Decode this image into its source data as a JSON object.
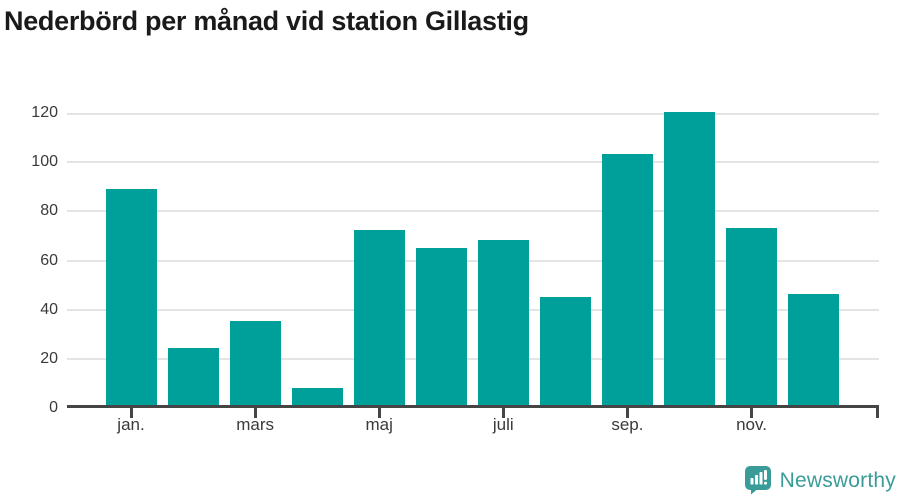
{
  "title": "Nederbörd per månad vid station Gillastig",
  "branding": {
    "name": "Newsworthy",
    "logo_icon": "newsworthy-speech-bubble-bar-chart-icon",
    "color": "#3a9c98"
  },
  "colors": {
    "bar": "#00a09a",
    "grid": "#e4e4e4",
    "axis": "#454545",
    "tick_label": "#3a3a3a",
    "title": "#1a1a1a"
  },
  "chart_data": {
    "type": "bar",
    "title": "Nederbörd per månad vid station Gillastig",
    "values": [
      88,
      23,
      34,
      7,
      71,
      64,
      67,
      44,
      102,
      119,
      72,
      45
    ],
    "x_tick_labels": [
      "jan.",
      "mars",
      "maj",
      "juli",
      "sep.",
      "nov."
    ],
    "x_tick_bar_indexes": [
      0,
      2,
      4,
      6,
      8,
      10
    ],
    "y_ticks": [
      0,
      20,
      40,
      60,
      80,
      100,
      120
    ],
    "ylim": [
      0,
      120
    ],
    "xlabel": "",
    "ylabel": "",
    "grid": true,
    "legend": false
  }
}
